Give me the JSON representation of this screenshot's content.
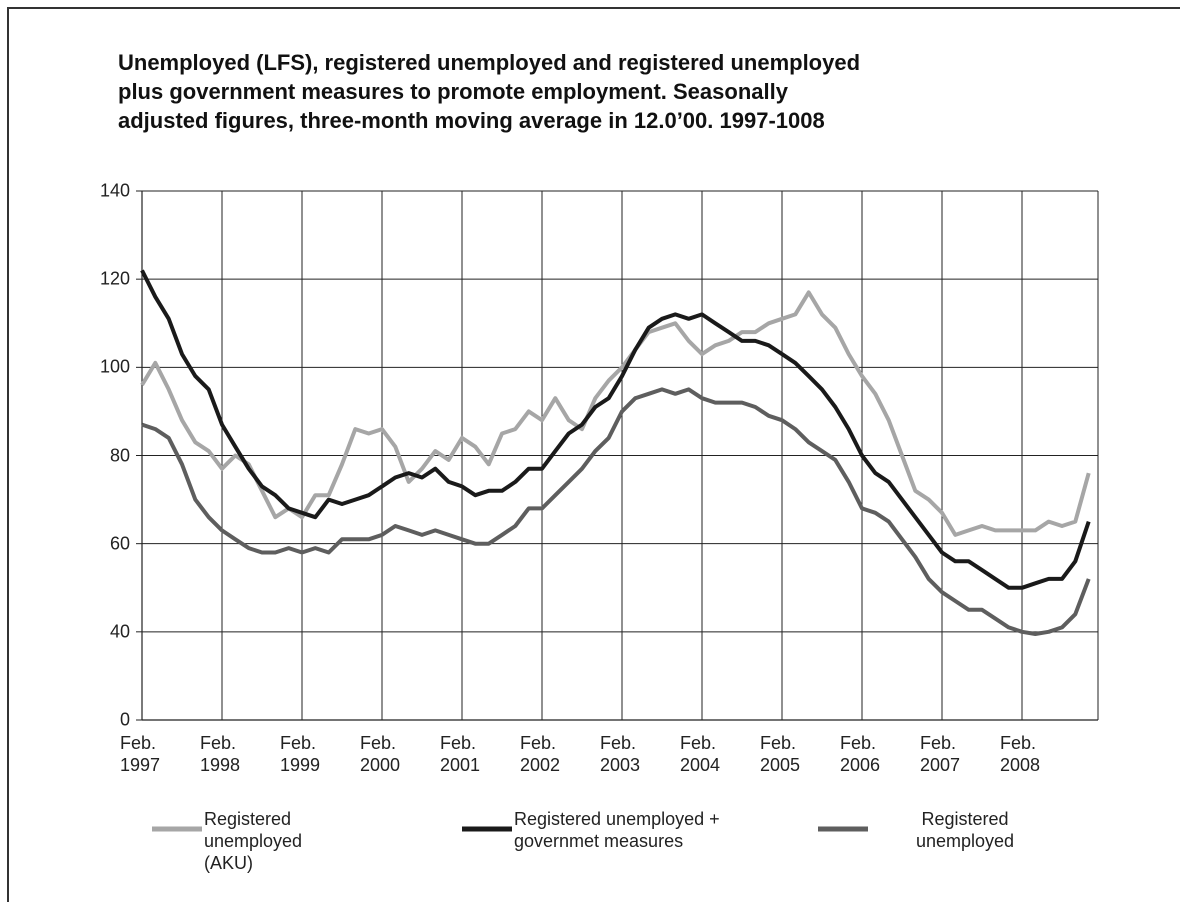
{
  "chart_data": {
    "type": "line",
    "title": "Unemployed (LFS), registered unemployed and registered unemployed plus government measures to promote employment. Seasonally adjusted figures, three-month moving average in 12.0’00. 1997-1008",
    "categories": [
      "Feb. 1997",
      null,
      null,
      null,
      null,
      null,
      "Feb. 1998",
      null,
      null,
      null,
      null,
      null,
      "Feb. 1999",
      null,
      null,
      null,
      null,
      null,
      "Feb. 2000",
      null,
      null,
      null,
      null,
      null,
      "Feb. 2001",
      null,
      null,
      null,
      null,
      null,
      "Feb. 2002",
      null,
      null,
      null,
      null,
      null,
      "Feb. 2003",
      null,
      null,
      null,
      null,
      null,
      "Feb. 2004",
      null,
      null,
      null,
      null,
      null,
      "Feb. 2005",
      null,
      null,
      null,
      null,
      null,
      "Feb. 2006",
      null,
      null,
      null,
      null,
      null,
      "Feb. 2007",
      null,
      null,
      null,
      null,
      null,
      "Feb. 2008",
      null,
      null,
      null,
      null,
      null
    ],
    "series": [
      {
        "name": "Registered unemployed (AKU)",
        "color": "#a6a6a6",
        "values": [
          96,
          101,
          95,
          88,
          83,
          81,
          77,
          80,
          78,
          72,
          66,
          68,
          66,
          71,
          71,
          78,
          86,
          85,
          86,
          82,
          74,
          77,
          81,
          79,
          84,
          82,
          78,
          85,
          86,
          90,
          88,
          93,
          88,
          86,
          93,
          97,
          100,
          104,
          108,
          109,
          110,
          106,
          103,
          105,
          106,
          108,
          108,
          110,
          111,
          112,
          117,
          112,
          109,
          103,
          98,
          94,
          88,
          80,
          72,
          70,
          67,
          62,
          63,
          64,
          63,
          63,
          63,
          63,
          65,
          64,
          65,
          76
        ]
      },
      {
        "name": "Registered unemployed + governmet measures",
        "color": "#1a1a1a",
        "values": [
          122,
          116,
          111,
          103,
          98,
          95,
          87,
          82,
          77,
          73,
          71,
          68,
          67,
          66,
          70,
          69,
          70,
          71,
          73,
          75,
          76,
          75,
          77,
          74,
          73,
          71,
          72,
          72,
          74,
          77,
          77,
          81,
          85,
          87,
          91,
          93,
          98,
          104,
          109,
          111,
          112,
          111,
          112,
          110,
          108,
          106,
          106,
          105,
          103,
          101,
          98,
          95,
          91,
          86,
          80,
          76,
          74,
          70,
          66,
          62,
          58,
          56,
          56,
          54,
          52,
          50,
          50,
          51,
          52,
          52,
          56,
          65
        ]
      },
      {
        "name": "Registered unemployed",
        "color": "#5e5e5e",
        "values": [
          87,
          86,
          84,
          78,
          70,
          66,
          63,
          61,
          59,
          58,
          58,
          59,
          58,
          59,
          58,
          61,
          61,
          61,
          62,
          64,
          63,
          62,
          63,
          62,
          61,
          60,
          60,
          62,
          64,
          68,
          68,
          71,
          74,
          77,
          81,
          84,
          90,
          93,
          94,
          95,
          94,
          95,
          93,
          92,
          92,
          92,
          91,
          89,
          88,
          86,
          83,
          81,
          79,
          74,
          68,
          67,
          65,
          61,
          57,
          52,
          49,
          47,
          45,
          45,
          43,
          41,
          40,
          39,
          40,
          41,
          44,
          52
        ]
      }
    ],
    "ylim": [
      0,
      140
    ],
    "yticks": [
      0,
      40,
      60,
      80,
      100,
      120,
      140
    ],
    "grid": true,
    "legend": "bottom"
  }
}
